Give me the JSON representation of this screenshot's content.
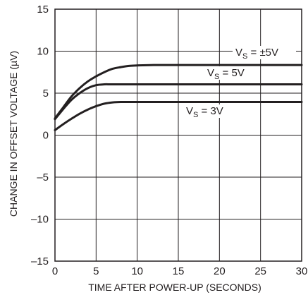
{
  "chart_data": {
    "type": "line",
    "title": "",
    "xlabel": "TIME AFTER POWER-UP (SECONDS)",
    "ylabel": "CHANGE IN OFFSET VOLTAGE (µV)",
    "xlim": [
      0,
      30
    ],
    "ylim": [
      -15,
      15
    ],
    "x_ticks": [
      0,
      5,
      10,
      15,
      20,
      25,
      30
    ],
    "y_ticks": [
      15,
      10,
      5,
      0,
      -5,
      -10,
      -15
    ],
    "x_tick_labels": [
      "0",
      "5",
      "10",
      "15",
      "20",
      "25",
      "30"
    ],
    "y_tick_labels": [
      "15",
      "10",
      "5",
      "0",
      "–5",
      "–10",
      "–15"
    ],
    "grid": true,
    "legend": "none",
    "series": [
      {
        "name": "VS = ±5V",
        "label_main": "V",
        "label_sub": "S",
        "label_rest": " = ±5V",
        "x": [
          0,
          1,
          2,
          3,
          4,
          5,
          6,
          7,
          8,
          9,
          10,
          12,
          15,
          20,
          25,
          30
        ],
        "values": [
          2.0,
          3.3,
          4.6,
          5.6,
          6.4,
          7.0,
          7.5,
          7.9,
          8.1,
          8.25,
          8.3,
          8.35,
          8.35,
          8.35,
          8.35,
          8.35
        ]
      },
      {
        "name": "VS = 5V",
        "label_main": "V",
        "label_sub": "S",
        "label_rest": " = 5V",
        "x": [
          0,
          1,
          2,
          3,
          4,
          5,
          6,
          7,
          10,
          15,
          20,
          25,
          30
        ],
        "values": [
          1.9,
          3.1,
          4.2,
          5.0,
          5.6,
          5.95,
          6.05,
          6.05,
          6.05,
          6.05,
          6.05,
          6.05,
          6.05
        ]
      },
      {
        "name": "VS = 3V",
        "label_main": "V",
        "label_sub": "S",
        "label_rest": " = 3V",
        "x": [
          0,
          1,
          2,
          3,
          4,
          5,
          6,
          7,
          8,
          10,
          15,
          20,
          25,
          30
        ],
        "values": [
          0.6,
          1.3,
          1.95,
          2.55,
          3.05,
          3.45,
          3.75,
          3.9,
          3.95,
          3.95,
          3.95,
          3.95,
          3.95,
          3.95
        ]
      }
    ]
  }
}
